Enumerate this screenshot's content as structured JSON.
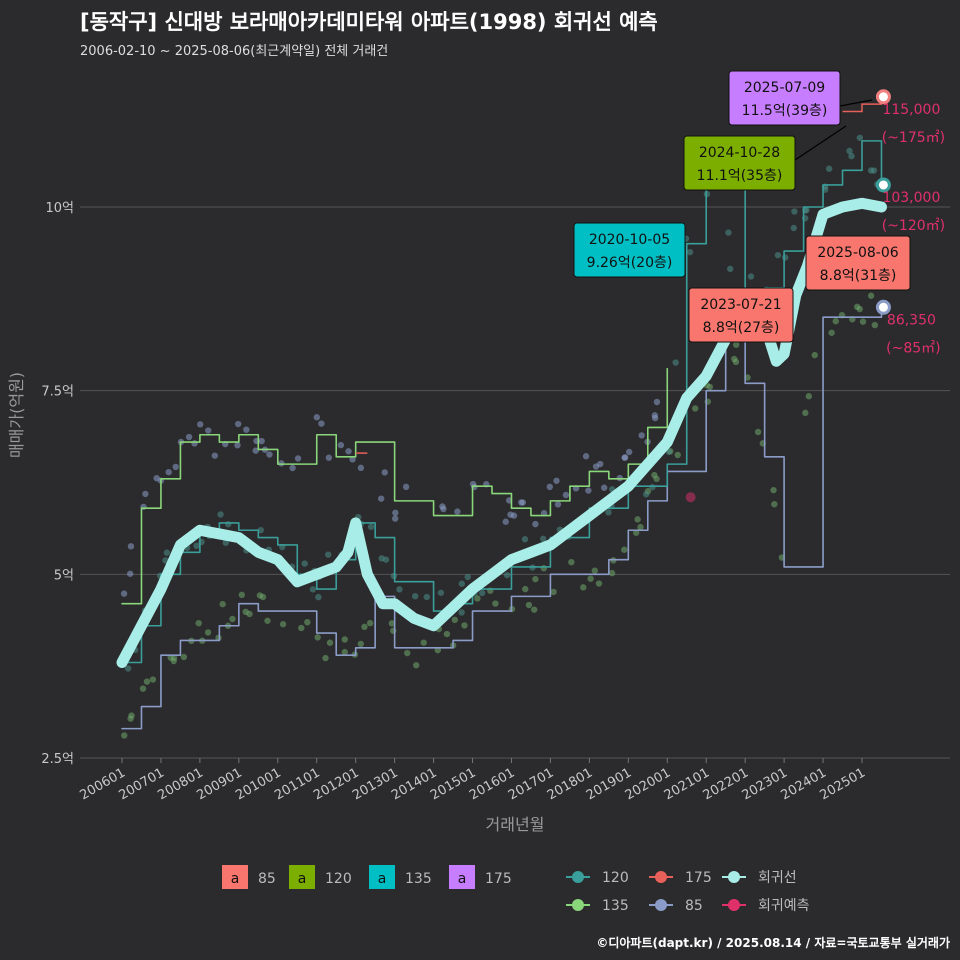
{
  "title": "[동작구] 신대방 보라매아카데미타워 아파트(1998) 회귀선 예측",
  "subtitle": "2006-02-10 ~ 2025-08-06(최근계약일) 전체 거래건",
  "footer": "©디아파트(dapt.kr) / 2025.08.14 / 자료=국토교통부 실거래가",
  "chart_data": {
    "type": "line",
    "xlabel": "거래년월",
    "ylabel": "매매가(억원)",
    "xlim": [
      2006.0,
      2026.2
    ],
    "ylim": [
      2.5,
      12.0
    ],
    "x_ticks": [
      {
        "label": "200601",
        "x": 2006.0
      },
      {
        "label": "200701",
        "x": 2007.0
      },
      {
        "label": "200801",
        "x": 2008.0
      },
      {
        "label": "200901",
        "x": 2009.0
      },
      {
        "label": "201001",
        "x": 2010.0
      },
      {
        "label": "201101",
        "x": 2011.0
      },
      {
        "label": "201201",
        "x": 2012.0
      },
      {
        "label": "201301",
        "x": 2013.0
      },
      {
        "label": "201401",
        "x": 2014.0
      },
      {
        "label": "201501",
        "x": 2015.0
      },
      {
        "label": "201601",
        "x": 2016.0
      },
      {
        "label": "201701",
        "x": 2017.0
      },
      {
        "label": "201801",
        "x": 2018.0
      },
      {
        "label": "201901",
        "x": 2019.0
      },
      {
        "label": "202001",
        "x": 2020.0
      },
      {
        "label": "202101",
        "x": 2021.0
      },
      {
        "label": "202201",
        "x": 2022.0
      },
      {
        "label": "202301",
        "x": 2023.0
      },
      {
        "label": "202401",
        "x": 2024.0
      },
      {
        "label": "202501",
        "x": 2025.0
      }
    ],
    "y_ticks": [
      {
        "label": "2.5억",
        "y": 2.5
      },
      {
        "label": "5억",
        "y": 5.0
      },
      {
        "label": "7.5억",
        "y": 7.5
      },
      {
        "label": "10억",
        "y": 10.0
      }
    ],
    "series": [
      {
        "name": "85",
        "color": "#8b9cc8",
        "x": [
          2006.0,
          2006.5,
          2007.0,
          2007.5,
          2008.0,
          2008.5,
          2009.0,
          2009.5,
          2010.0,
          2011.0,
          2011.5,
          2012.0,
          2012.5,
          2013.0,
          2014.0,
          2014.5,
          2015.0,
          2016.0,
          2016.5,
          2017.0,
          2018.0,
          2018.5,
          2019.0,
          2019.5,
          2020.0,
          2021.0,
          2021.5,
          2022.0,
          2022.5,
          2023.0,
          2024.0,
          2024.5,
          2025.0,
          2025.5
        ],
        "y": [
          2.9,
          3.2,
          3.9,
          4.1,
          4.1,
          4.3,
          4.6,
          4.5,
          4.5,
          4.2,
          3.9,
          4.0,
          4.7,
          4.0,
          4.0,
          4.1,
          4.5,
          4.7,
          4.7,
          5.0,
          5.0,
          5.2,
          5.6,
          6.0,
          6.4,
          7.5,
          8.3,
          7.6,
          6.6,
          5.1,
          8.5,
          8.5,
          8.5,
          8.6
        ]
      },
      {
        "name": "120",
        "color": "#3a9e9a",
        "x": [
          2006.0,
          2006.5,
          2007.0,
          2007.5,
          2008.0,
          2008.5,
          2009.0,
          2009.5,
          2010.0,
          2010.5,
          2011.0,
          2011.5,
          2012.0,
          2012.5,
          2013.0,
          2014.0,
          2014.5,
          2015.0,
          2016.0,
          2017.0,
          2018.0,
          2019.0,
          2020.0,
          2020.5,
          2021.0,
          2022.0,
          2022.5,
          2023.0,
          2023.5,
          2024.0,
          2024.5,
          2025.0,
          2025.5
        ],
        "y": [
          3.8,
          4.3,
          5.0,
          5.3,
          5.6,
          5.7,
          5.6,
          5.5,
          5.4,
          5.0,
          4.8,
          5.2,
          5.7,
          5.5,
          4.9,
          4.5,
          4.6,
          4.8,
          5.1,
          5.5,
          5.9,
          6.2,
          6.5,
          9.5,
          10.3,
          8.8,
          8.9,
          9.4,
          10.0,
          10.3,
          10.5,
          10.9,
          10.3
        ]
      },
      {
        "name": "135",
        "color": "#8ad67a",
        "x": [
          2006.0,
          2006.5,
          2007.0,
          2007.5,
          2008.0,
          2008.5,
          2009.0,
          2009.5,
          2010.0,
          2011.0,
          2011.5,
          2012.0,
          2013.0,
          2014.0,
          2015.0,
          2015.5,
          2016.0,
          2016.5,
          2017.0,
          2017.5,
          2018.0,
          2018.5,
          2019.0,
          2019.5,
          2020.0
        ],
        "y": [
          4.6,
          5.9,
          6.3,
          6.8,
          6.9,
          6.8,
          6.9,
          6.7,
          6.5,
          6.9,
          6.6,
          6.8,
          6.0,
          5.8,
          6.2,
          6.1,
          5.9,
          5.8,
          6.0,
          6.2,
          6.4,
          6.3,
          6.5,
          7.0,
          7.8
        ]
      },
      {
        "name": "175",
        "color": "#e8605a",
        "x": [
          2012.0,
          2012.3,
          2024.5,
          2025.0,
          2025.5
        ],
        "y": [
          6.65,
          6.65,
          11.3,
          11.4,
          11.5
        ]
      },
      {
        "name": "회귀선",
        "color": "#a8ede8",
        "x": [
          2006.0,
          2006.5,
          2007.0,
          2007.5,
          2008.0,
          2008.5,
          2009.0,
          2009.5,
          2010.0,
          2010.5,
          2011.0,
          2011.5,
          2011.8,
          2012.0,
          2012.3,
          2012.7,
          2013.0,
          2013.5,
          2014.0,
          2014.5,
          2015.0,
          2015.5,
          2016.0,
          2016.5,
          2017.0,
          2017.5,
          2018.0,
          2018.5,
          2019.0,
          2019.5,
          2020.0,
          2020.5,
          2021.0,
          2021.5,
          2022.0,
          2022.5,
          2022.8,
          2023.0,
          2023.3,
          2023.6,
          2024.0,
          2024.5,
          2025.0,
          2025.5
        ],
        "y": [
          3.8,
          4.3,
          4.8,
          5.4,
          5.6,
          5.55,
          5.5,
          5.3,
          5.2,
          4.9,
          5.0,
          5.1,
          5.3,
          5.7,
          5.0,
          4.6,
          4.6,
          4.4,
          4.3,
          4.55,
          4.8,
          5.0,
          5.2,
          5.3,
          5.4,
          5.6,
          5.8,
          6.0,
          6.2,
          6.5,
          6.8,
          7.4,
          7.7,
          8.2,
          8.6,
          8.4,
          7.9,
          8.0,
          8.8,
          9.2,
          9.9,
          10.0,
          10.05,
          10.0
        ]
      }
    ],
    "scatter_colors": [
      "#6fa86a",
      "#4a8e88",
      "#8b9cc8"
    ],
    "predictions": [
      {
        "label": "115,000",
        "sub": "(~175㎡)",
        "value": 11.5,
        "color": "#f08080"
      },
      {
        "label": "103,000",
        "sub": "(~120㎡)",
        "value": 10.3,
        "color": "#3a9e9a"
      },
      {
        "label": "86,350",
        "sub": "(~85㎡)",
        "value": 8.635,
        "color": "#8b9cc8"
      }
    ],
    "annotations": [
      {
        "date": "2025-07-09",
        "price": "11.5억(39층)",
        "color": "#c77dff"
      },
      {
        "date": "2024-10-28",
        "price": "11.1억(35층)",
        "color": "#7cae00"
      },
      {
        "date": "2020-10-05",
        "price": "9.26억(20층)",
        "color": "#00bfc4"
      },
      {
        "date": "2025-08-06",
        "price": "8.8억(31층)",
        "color": "#f8766d"
      },
      {
        "date": "2023-07-21",
        "price": "8.8억(27층)",
        "color": "#f8766d"
      }
    ],
    "legend_area": [
      {
        "key": "a",
        "label": "85",
        "color": "#f8766d"
      },
      {
        "key": "a",
        "label": "120",
        "color": "#7cae00"
      },
      {
        "key": "a",
        "label": "135",
        "color": "#00bfc4"
      },
      {
        "key": "a",
        "label": "175",
        "color": "#c77dff"
      }
    ],
    "legend_lines": [
      {
        "label": "120",
        "color": "#3a9e9a"
      },
      {
        "label": "175",
        "color": "#e8605a"
      },
      {
        "label": "회귀선",
        "color": "#a8ede8"
      },
      {
        "label": "135",
        "color": "#8ad67a"
      },
      {
        "label": "85",
        "color": "#8b9cc8"
      },
      {
        "label": "회귀예측",
        "color": "#e0306a"
      }
    ]
  }
}
